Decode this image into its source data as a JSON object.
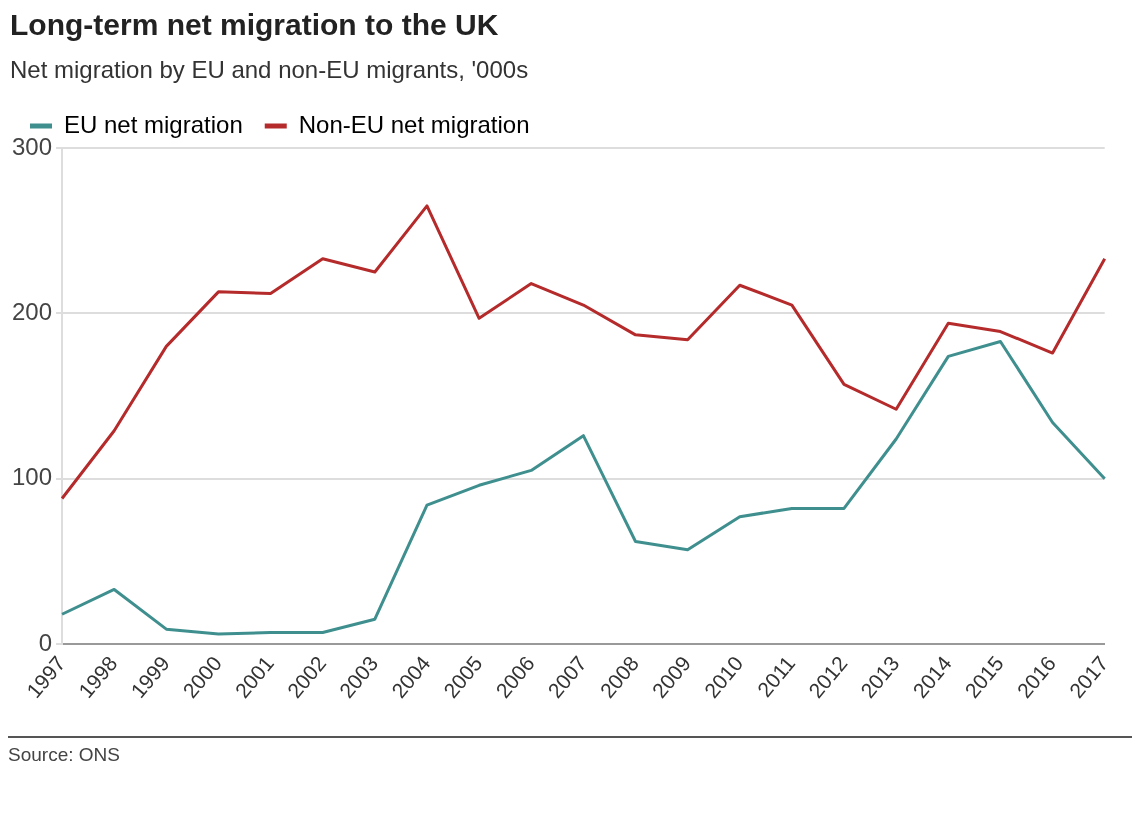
{
  "chart_data": {
    "type": "line",
    "title": "Long-term net migration to the UK",
    "subtitle": "Net migration by EU and non-EU migrants, '000s",
    "categories": [
      "1997",
      "1998",
      "1999",
      "2000",
      "2001",
      "2002",
      "2003",
      "2004",
      "2005",
      "2006",
      "2007",
      "2008",
      "2009",
      "2010",
      "2011",
      "2012",
      "2013",
      "2014",
      "2015",
      "2016",
      "2017"
    ],
    "series": [
      {
        "name": "EU net migration",
        "color": "#3f8f8f",
        "values": [
          18,
          33,
          9,
          6,
          7,
          7,
          15,
          84,
          96,
          105,
          126,
          62,
          57,
          77,
          82,
          82,
          124,
          174,
          183,
          134,
          100
        ]
      },
      {
        "name": "Non-EU net migration",
        "color": "#b52a2a",
        "values": [
          88,
          129,
          180,
          213,
          212,
          233,
          225,
          265,
          197,
          218,
          205,
          187,
          184,
          217,
          205,
          157,
          142,
          194,
          189,
          176,
          233
        ]
      }
    ],
    "ylim": [
      0,
      300
    ],
    "yticks": [
      0,
      100,
      200,
      300
    ],
    "grid": "y",
    "legend": "top left",
    "marker": "none",
    "line_style": "solid",
    "annotations": [
      "Source: ONS"
    ]
  }
}
